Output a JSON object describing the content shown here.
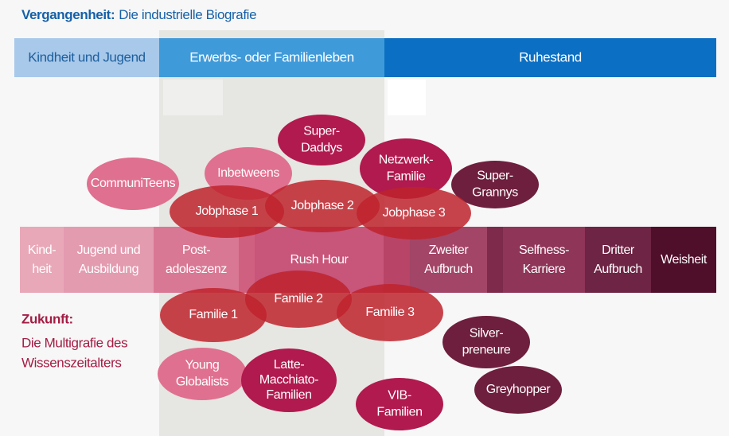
{
  "header": {
    "title_bold": "Vergangenheit:",
    "title": "Die industrielle Biografie"
  },
  "past_bar": [
    {
      "label": "Kindheit und Jugend"
    },
    {
      "label": "Erwerbs- oder Familienleben"
    },
    {
      "label": "Ruhestand"
    }
  ],
  "phases": [
    {
      "lines": [
        "Kind-",
        "heit"
      ]
    },
    {
      "lines": [
        "Jugend und",
        "Ausbildung"
      ]
    },
    {
      "lines": [
        "Post-",
        "adoleszenz"
      ]
    },
    {
      "lines": [
        "Rush Hour"
      ]
    },
    {
      "lines": [
        "Zweiter",
        "Aufbruch"
      ]
    },
    {
      "lines": [
        "Selfness-",
        "Karriere"
      ]
    },
    {
      "lines": [
        "Dritter",
        "Aufbruch"
      ]
    },
    {
      "lines": [
        "Weisheit"
      ]
    }
  ],
  "future": {
    "title": "Zukunft:",
    "lines": [
      "Die Multigrafie des",
      "Wissenszeitalters"
    ]
  },
  "clusters": [
    {
      "lines": [
        "CommuniTeens"
      ]
    },
    {
      "lines": [
        "Inbetweens"
      ]
    },
    {
      "lines": [
        "Super-",
        "Daddys"
      ]
    },
    {
      "lines": [
        "Netzwerk-",
        "Familie"
      ]
    },
    {
      "lines": [
        "Super-",
        "Grannys"
      ]
    },
    {
      "lines": [
        "Jobphase 1"
      ]
    },
    {
      "lines": [
        "Jobphase 2"
      ]
    },
    {
      "lines": [
        "Jobphase 3"
      ]
    },
    {
      "lines": [
        "Familie 1"
      ]
    },
    {
      "lines": [
        "Familie 2"
      ]
    },
    {
      "lines": [
        "Familie 3"
      ]
    },
    {
      "lines": [
        "Silver-",
        "preneure"
      ]
    },
    {
      "lines": [
        "Young",
        "Globalists"
      ]
    },
    {
      "lines": [
        "Latte-",
        "Macchiato-",
        "Familien"
      ]
    },
    {
      "lines": [
        "Greyhopper"
      ]
    },
    {
      "lines": [
        "VIB-",
        "Familien"
      ]
    }
  ]
}
